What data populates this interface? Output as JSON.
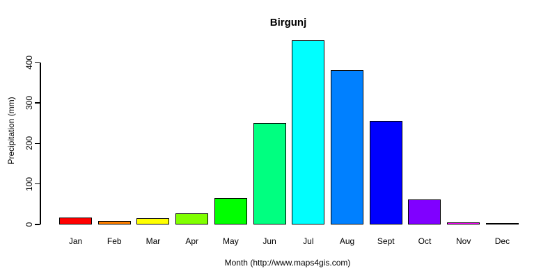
{
  "page": {
    "background_color": "#FFFFFF",
    "text_color": "#000000"
  },
  "chart_data": {
    "type": "bar",
    "title": "Birgunj",
    "xlabel": "Month (http://www.maps4gis.com)",
    "ylabel": "Precipitation (mm)",
    "categories": [
      "Jan",
      "Feb",
      "Mar",
      "Apr",
      "May",
      "Jun",
      "Jul",
      "Aug",
      "Sept",
      "Oct",
      "Nov",
      "Dec"
    ],
    "values": [
      18,
      9,
      16,
      28,
      66,
      250,
      455,
      381,
      255,
      62,
      6,
      3
    ],
    "bar_colors": [
      "#FF0000",
      "#FF8000",
      "#FFFF00",
      "#80FF00",
      "#00FF00",
      "#00FF80",
      "#00FFFF",
      "#0080FF",
      "#0000FF",
      "#8000FF",
      "#FF00FF",
      "#FF0080"
    ],
    "bar_border_color": "#000000",
    "axis_color": "#000000",
    "ytick_labels": [
      "0",
      "100",
      "200",
      "300",
      "400"
    ],
    "ytick_values": [
      0,
      100,
      200,
      300,
      400
    ],
    "ylim": [
      0,
      460
    ],
    "grid": false,
    "legend_position": "none"
  }
}
